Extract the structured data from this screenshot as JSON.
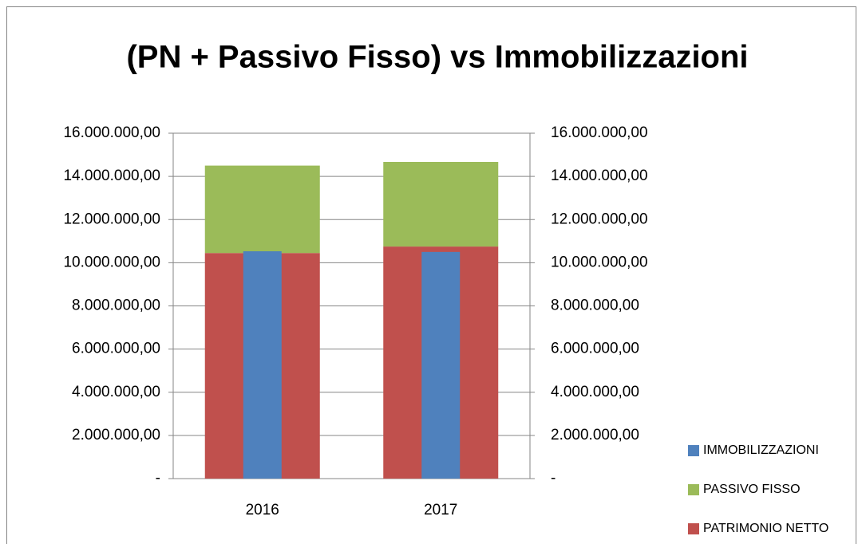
{
  "chart_data": {
    "type": "bar",
    "stacked": true,
    "title": "(PN + Passivo Fisso) vs Immobilizzazioni",
    "categories": [
      "2016",
      "2017"
    ],
    "series": [
      {
        "name": "PATRIMONIO NETTO",
        "color": "#c0504d",
        "values": [
          10450000,
          10750000
        ]
      },
      {
        "name": "PASSIVO FISSO",
        "color": "#9bbb59",
        "values": [
          4050000,
          3920000
        ]
      },
      {
        "name": "IMMOBILIZZAZIONI",
        "color": "#4f81bd",
        "values": [
          10530000,
          10500000
        ],
        "axis": "y2"
      }
    ],
    "ylim": [
      0,
      16000000
    ],
    "yticks": [
      {
        "value": 0,
        "label": "-"
      },
      {
        "value": 2000000,
        "label": "2.000.000,00"
      },
      {
        "value": 4000000,
        "label": "4.000.000,00"
      },
      {
        "value": 6000000,
        "label": "6.000.000,00"
      },
      {
        "value": 8000000,
        "label": "8.000.000,00"
      },
      {
        "value": 10000000,
        "label": "10.000.000,00"
      },
      {
        "value": 12000000,
        "label": "12.000.000,00"
      },
      {
        "value": 14000000,
        "label": "14.000.000,00"
      },
      {
        "value": 16000000,
        "label": "16.000.000,00"
      }
    ],
    "y2lim": [
      0,
      16000000
    ],
    "y2ticks": [
      {
        "value": 0,
        "label": "-"
      },
      {
        "value": 2000000,
        "label": "2.000.000,00"
      },
      {
        "value": 4000000,
        "label": "4.000.000,00"
      },
      {
        "value": 6000000,
        "label": "6.000.000,00"
      },
      {
        "value": 8000000,
        "label": "8.000.000,00"
      },
      {
        "value": 10000000,
        "label": "10.000.000,00"
      },
      {
        "value": 12000000,
        "label": "12.000.000,00"
      },
      {
        "value": 14000000,
        "label": "14.000.000,00"
      },
      {
        "value": 16000000,
        "label": "16.000.000,00"
      }
    ],
    "grid": true,
    "legend": "right"
  }
}
